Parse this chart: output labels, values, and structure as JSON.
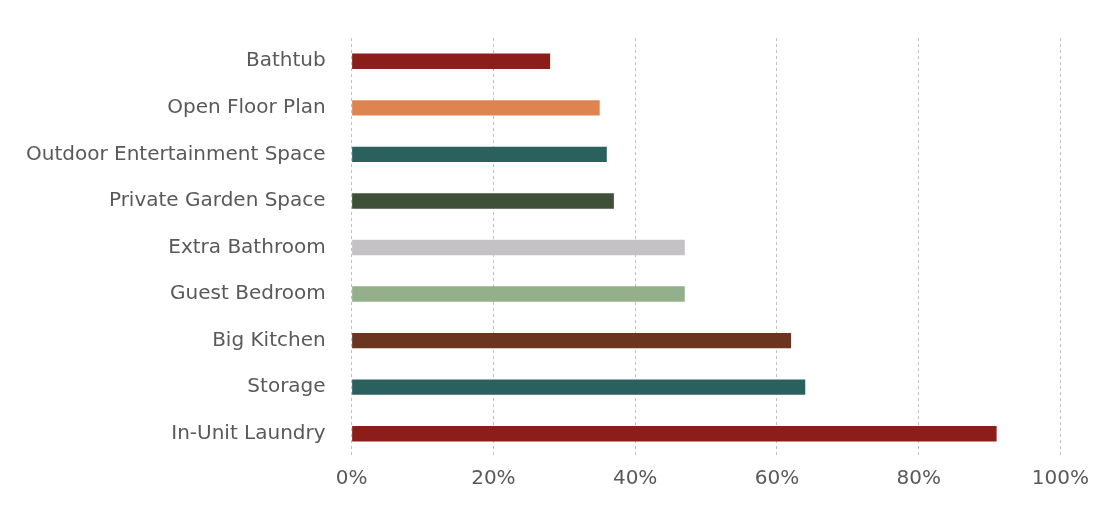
{
  "chart_data": {
    "type": "bar",
    "orientation": "horizontal",
    "categories": [
      "Bathtub",
      "Open Floor Plan",
      "Outdoor Entertainment Space",
      "Private Garden Space",
      "Extra Bathroom",
      "Guest Bedroom",
      "Big Kitchen",
      "Storage",
      "In-Unit Laundry"
    ],
    "values": [
      28,
      35,
      36,
      37,
      47,
      47,
      62,
      64,
      91
    ],
    "colors": [
      "#8b1e1a",
      "#e0844f",
      "#2a615f",
      "#3e5138",
      "#c4c2c4",
      "#93b08a",
      "#6b3520",
      "#2a615f",
      "#8b1e1a"
    ],
    "xlim": [
      0,
      100
    ],
    "xticks": [
      {
        "value": 0,
        "label": "0%"
      },
      {
        "value": 20,
        "label": "20%"
      },
      {
        "value": 40,
        "label": "40%"
      },
      {
        "value": 60,
        "label": "60%"
      },
      {
        "value": 80,
        "label": "80%"
      },
      {
        "value": 100,
        "label": "100%"
      }
    ],
    "grid": "x",
    "legend": false
  }
}
